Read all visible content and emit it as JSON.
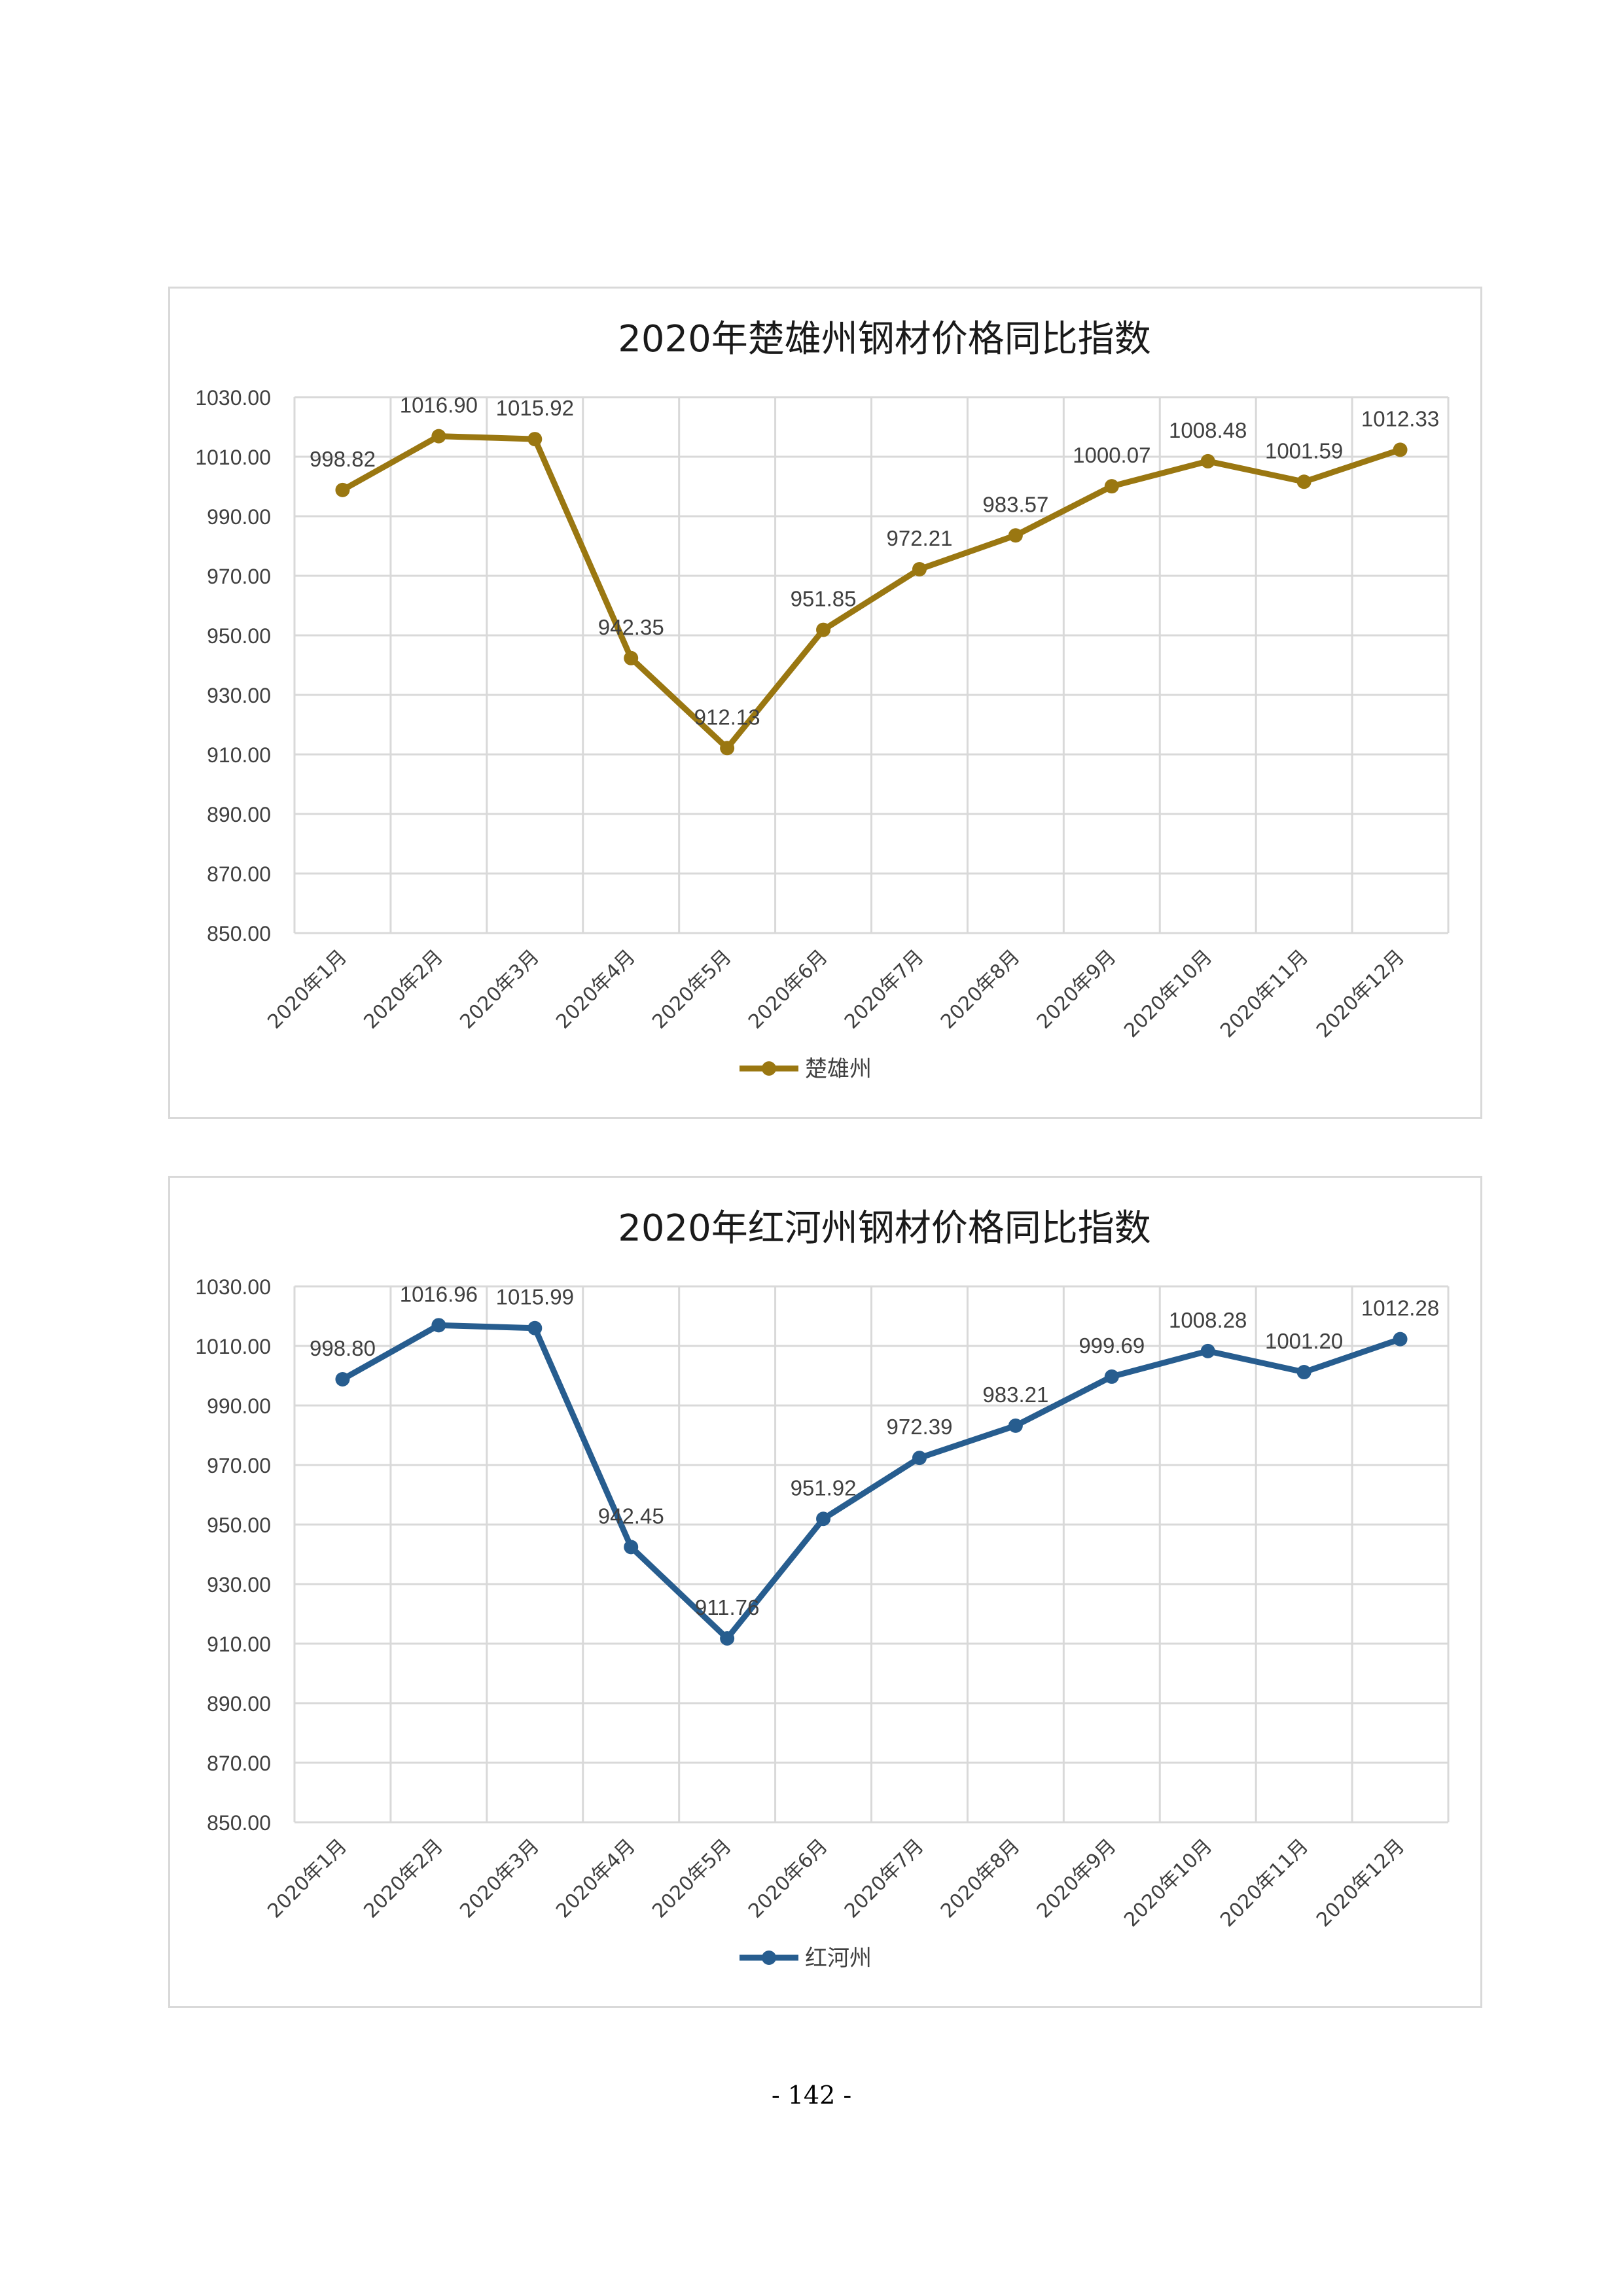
{
  "page": {
    "number": "- 142 -"
  },
  "chart_data": [
    {
      "type": "line",
      "title": "2020年楚雄州钢材价格同比指数",
      "categories": [
        "2020年1月",
        "2020年2月",
        "2020年3月",
        "2020年4月",
        "2020年5月",
        "2020年6月",
        "2020年7月",
        "2020年8月",
        "2020年9月",
        "2020年10月",
        "2020年11月",
        "2020年12月"
      ],
      "series": [
        {
          "name": "楚雄州",
          "color": "#9a7711",
          "values": [
            998.82,
            1016.9,
            1015.92,
            942.35,
            912.13,
            951.85,
            972.21,
            983.57,
            1000.07,
            1008.48,
            1001.59,
            1012.33
          ]
        }
      ],
      "ylim": [
        850,
        1030
      ],
      "yticks": [
        850,
        870,
        890,
        910,
        930,
        950,
        970,
        990,
        1010,
        1030
      ],
      "grid": true,
      "legend": "bottom",
      "data_labels": true
    },
    {
      "type": "line",
      "title": "2020年红河州钢材价格同比指数",
      "categories": [
        "2020年1月",
        "2020年2月",
        "2020年3月",
        "2020年4月",
        "2020年5月",
        "2020年6月",
        "2020年7月",
        "2020年8月",
        "2020年9月",
        "2020年10月",
        "2020年11月",
        "2020年12月"
      ],
      "series": [
        {
          "name": "红河州",
          "color": "#275d8f",
          "values": [
            998.8,
            1016.96,
            1015.99,
            942.45,
            911.76,
            951.92,
            972.39,
            983.21,
            999.69,
            1008.28,
            1001.2,
            1012.28
          ]
        }
      ],
      "ylim": [
        850,
        1030
      ],
      "yticks": [
        850,
        870,
        890,
        910,
        930,
        950,
        970,
        990,
        1010,
        1030
      ],
      "grid": true,
      "legend": "bottom",
      "data_labels": true
    }
  ]
}
